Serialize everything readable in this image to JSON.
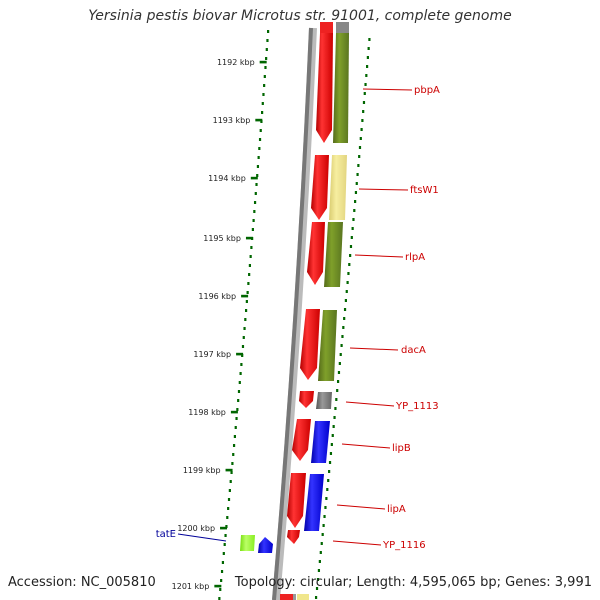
{
  "title": "Yersinia pestis biovar Microtus str. 91001, complete genome",
  "footer": {
    "accession": "Accession: NC_005810",
    "stats": "Topology: circular; Length: 4,595,065 bp; Genes: 3,991"
  },
  "ticks": [
    {
      "label": "1192 kbp"
    },
    {
      "label": "1193 kbp"
    },
    {
      "label": "1194 kbp"
    },
    {
      "label": "1195 kbp"
    },
    {
      "label": "1196 kbp"
    },
    {
      "label": "1197 kbp"
    },
    {
      "label": "1198 kbp"
    },
    {
      "label": "1199 kbp"
    },
    {
      "label": "1200 kbp"
    },
    {
      "label": "1201 kbp"
    }
  ],
  "genes": [
    {
      "name": "pbpA",
      "color": "#cc0000"
    },
    {
      "name": "ftsW1",
      "color": "#cc0000"
    },
    {
      "name": "rlpA",
      "color": "#cc0000"
    },
    {
      "name": "dacA",
      "color": "#cc0000"
    },
    {
      "name": "YP_1113",
      "color": "#cc0000"
    },
    {
      "name": "lipB",
      "color": "#cc0000"
    },
    {
      "name": "lipA",
      "color": "#cc0000"
    },
    {
      "name": "YP_1116",
      "color": "#cc0000"
    },
    {
      "name": "tatE",
      "color": "#000099"
    }
  ],
  "colors": {
    "cds": "#ff0000",
    "olive_category": "#6b8e23",
    "yellow_category": "#f0e68c",
    "blue_category": "#0000ff",
    "gray_category": "#808080",
    "lime_category": "#99ff33",
    "tick_dots": "#006600"
  }
}
